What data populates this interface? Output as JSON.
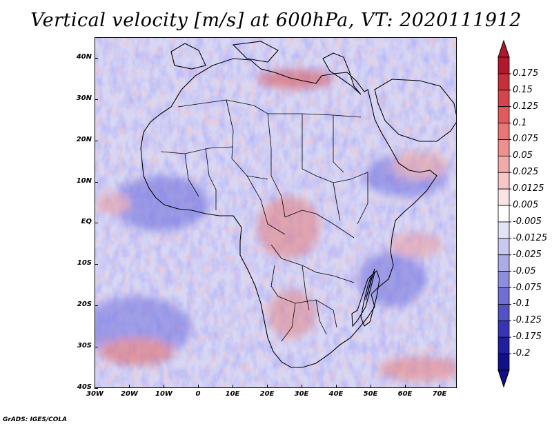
{
  "title": "Vertical velocity [m/s] at 600hPa, VT: 2020111912",
  "credit": "GrADS: IGES/COLA",
  "map": {
    "variable": "Vertical velocity",
    "units": "m/s",
    "level": "600hPa",
    "valid_time": "2020111912",
    "lon_range": [
      -30,
      75
    ],
    "lat_range": [
      -40,
      45
    ]
  },
  "axes": {
    "x_ticks": [
      {
        "value": -30,
        "label": "30W"
      },
      {
        "value": -20,
        "label": "20W"
      },
      {
        "value": -10,
        "label": "10W"
      },
      {
        "value": 0,
        "label": "0"
      },
      {
        "value": 10,
        "label": "10E"
      },
      {
        "value": 20,
        "label": "20E"
      },
      {
        "value": 30,
        "label": "30E"
      },
      {
        "value": 40,
        "label": "40E"
      },
      {
        "value": 50,
        "label": "50E"
      },
      {
        "value": 60,
        "label": "60E"
      },
      {
        "value": 70,
        "label": "70E"
      }
    ],
    "y_ticks": [
      {
        "value": 40,
        "label": "40N"
      },
      {
        "value": 30,
        "label": "30N"
      },
      {
        "value": 20,
        "label": "20N"
      },
      {
        "value": 10,
        "label": "10N"
      },
      {
        "value": 0,
        "label": "EQ"
      },
      {
        "value": -10,
        "label": "10S"
      },
      {
        "value": -20,
        "label": "20S"
      },
      {
        "value": -30,
        "label": "30S"
      },
      {
        "value": -40,
        "label": "40S"
      }
    ]
  },
  "colorbar": {
    "labels": [
      "0.175",
      "0.15",
      "0.125",
      "0.1",
      "0.075",
      "0.05",
      "0.025",
      "0.0125",
      "0.005",
      "-0.005",
      "-0.0125",
      "-0.025",
      "-0.05",
      "-0.075",
      "-0.1",
      "-0.125",
      "-0.175",
      "-0.2"
    ],
    "colors": [
      "#b2182b",
      "#c62e3a",
      "#d6444b",
      "#e05a5e",
      "#e87676",
      "#ee9090",
      "#f3aaaa",
      "#f7c6c6",
      "#fbe3e3",
      "#ffffff",
      "#e3e3f8",
      "#c8c8f1",
      "#ababe8",
      "#8d8dde",
      "#6f6fd2",
      "#5252c4",
      "#3636b4",
      "#1f1fa0",
      "#10108a"
    ],
    "top_color": "#b2182b",
    "bottom_color": "#10108a"
  }
}
